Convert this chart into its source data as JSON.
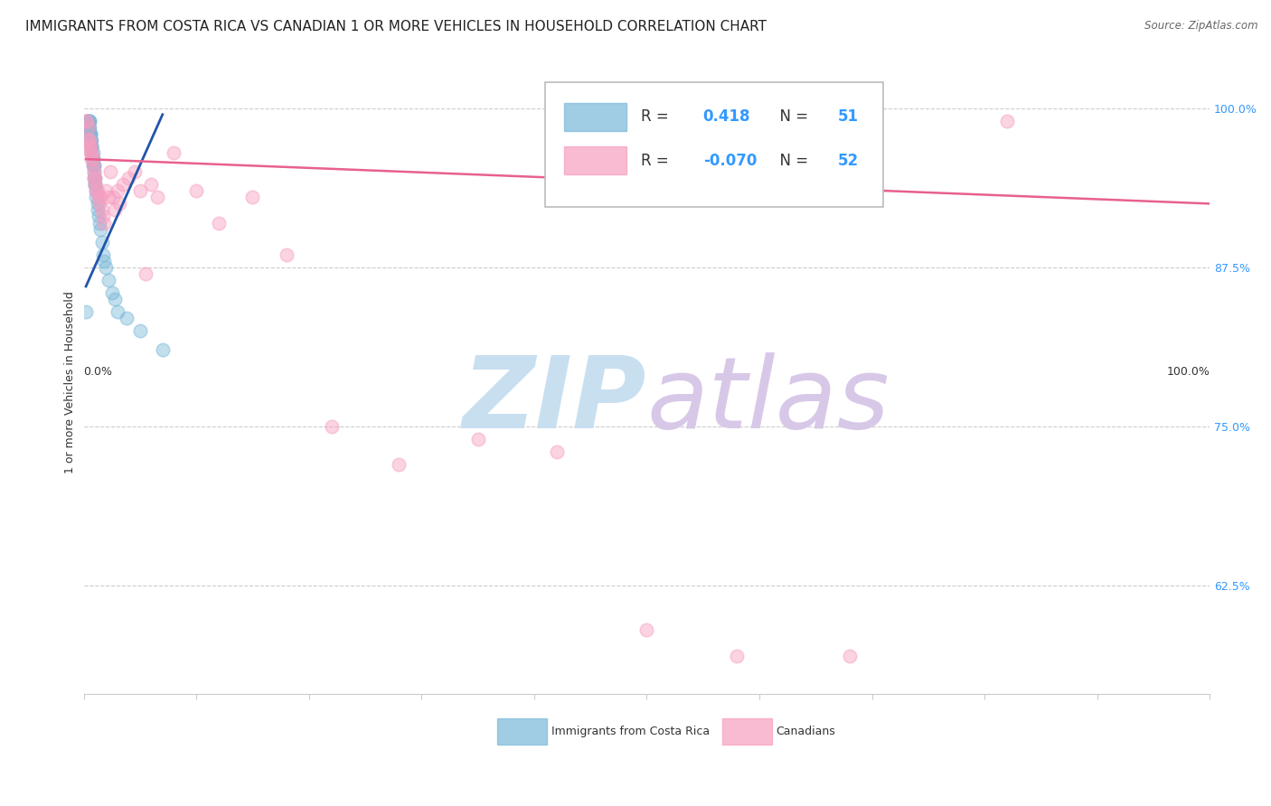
{
  "title": "IMMIGRANTS FROM COSTA RICA VS CANADIAN 1 OR MORE VEHICLES IN HOUSEHOLD CORRELATION CHART",
  "source": "Source: ZipAtlas.com",
  "ylabel": "1 or more Vehicles in Household",
  "ytick_labels": [
    "100.0%",
    "87.5%",
    "75.0%",
    "62.5%"
  ],
  "ytick_values": [
    1.0,
    0.875,
    0.75,
    0.625
  ],
  "blue_R": "0.418",
  "blue_N": "51",
  "pink_R": "-0.070",
  "pink_N": "52",
  "blue_scatter_x": [
    0.002,
    0.003,
    0.003,
    0.003,
    0.004,
    0.004,
    0.004,
    0.004,
    0.005,
    0.005,
    0.005,
    0.005,
    0.005,
    0.006,
    0.006,
    0.006,
    0.006,
    0.007,
    0.007,
    0.007,
    0.007,
    0.007,
    0.008,
    0.008,
    0.008,
    0.008,
    0.009,
    0.009,
    0.009,
    0.009,
    0.01,
    0.01,
    0.01,
    0.011,
    0.011,
    0.012,
    0.012,
    0.013,
    0.014,
    0.015,
    0.016,
    0.017,
    0.018,
    0.02,
    0.022,
    0.025,
    0.028,
    0.03,
    0.038,
    0.05,
    0.07
  ],
  "blue_scatter_y": [
    0.84,
    0.99,
    0.99,
    0.985,
    0.985,
    0.99,
    0.99,
    0.985,
    0.98,
    0.99,
    0.99,
    0.985,
    0.98,
    0.975,
    0.98,
    0.98,
    0.975,
    0.97,
    0.975,
    0.97,
    0.97,
    0.965,
    0.96,
    0.965,
    0.96,
    0.955,
    0.955,
    0.955,
    0.95,
    0.945,
    0.945,
    0.94,
    0.94,
    0.935,
    0.93,
    0.925,
    0.92,
    0.915,
    0.91,
    0.905,
    0.895,
    0.885,
    0.88,
    0.875,
    0.865,
    0.855,
    0.85,
    0.84,
    0.835,
    0.825,
    0.81
  ],
  "pink_scatter_x": [
    0.002,
    0.003,
    0.003,
    0.004,
    0.004,
    0.005,
    0.005,
    0.006,
    0.006,
    0.007,
    0.007,
    0.008,
    0.008,
    0.009,
    0.009,
    0.01,
    0.01,
    0.011,
    0.012,
    0.013,
    0.014,
    0.015,
    0.016,
    0.017,
    0.018,
    0.02,
    0.022,
    0.024,
    0.026,
    0.028,
    0.03,
    0.032,
    0.035,
    0.04,
    0.045,
    0.05,
    0.055,
    0.06,
    0.065,
    0.08,
    0.1,
    0.12,
    0.15,
    0.18,
    0.22,
    0.28,
    0.35,
    0.42,
    0.5,
    0.58,
    0.68,
    0.82
  ],
  "pink_scatter_y": [
    0.99,
    0.99,
    0.975,
    0.985,
    0.975,
    0.97,
    0.975,
    0.965,
    0.97,
    0.96,
    0.965,
    0.955,
    0.96,
    0.945,
    0.95,
    0.94,
    0.945,
    0.935,
    0.935,
    0.93,
    0.925,
    0.93,
    0.92,
    0.915,
    0.91,
    0.935,
    0.93,
    0.95,
    0.93,
    0.92,
    0.935,
    0.925,
    0.94,
    0.945,
    0.95,
    0.935,
    0.87,
    0.94,
    0.93,
    0.965,
    0.935,
    0.91,
    0.93,
    0.885,
    0.75,
    0.72,
    0.74,
    0.73,
    0.59,
    0.57,
    0.57,
    0.99
  ],
  "blue_line_x0": 0.002,
  "blue_line_x1": 0.07,
  "blue_line_y0": 0.86,
  "blue_line_y1": 0.995,
  "pink_line_x0": 0.002,
  "pink_line_x1": 1.0,
  "pink_line_y0": 0.96,
  "pink_line_y1": 0.925,
  "xlim": [
    0.0,
    1.0
  ],
  "ylim": [
    0.54,
    1.03
  ],
  "background_color": "#ffffff",
  "grid_color": "#cccccc",
  "blue_dot_color": "#7ab8d9",
  "pink_dot_color": "#f79ec0",
  "blue_line_color": "#2255aa",
  "pink_line_color": "#e86090",
  "ytick_color": "#3399ff",
  "watermark_zip": "ZIP",
  "watermark_atlas": "atlas",
  "watermark_color": "#c8dff0",
  "watermark_color2": "#d8c8e8",
  "title_fontsize": 11,
  "axis_label_fontsize": 9,
  "tick_fontsize": 9,
  "marker_size": 110,
  "marker_alpha": 0.45
}
